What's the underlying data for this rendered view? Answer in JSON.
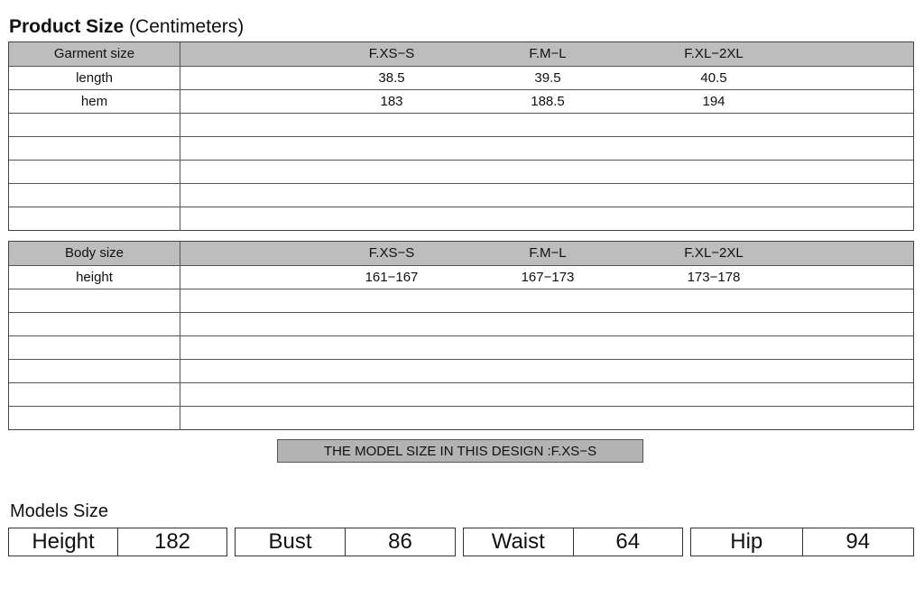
{
  "title": {
    "bold": "Product Size",
    "rest": "(Centimeters)"
  },
  "garment_table": {
    "header": [
      "Garment size",
      "F.XS−S",
      "F.M−L",
      "F.XL−2XL"
    ],
    "rows": [
      [
        "length",
        "38.5",
        "39.5",
        "40.5"
      ],
      [
        "hem",
        "183",
        "188.5",
        "194"
      ],
      [
        "",
        "",
        "",
        ""
      ],
      [
        "",
        "",
        "",
        ""
      ],
      [
        "",
        "",
        "",
        ""
      ],
      [
        "",
        "",
        "",
        ""
      ],
      [
        "",
        "",
        "",
        ""
      ]
    ]
  },
  "body_table": {
    "header": [
      "Body size",
      "F.XS−S",
      "F.M−L",
      "F.XL−2XL"
    ],
    "rows": [
      [
        "height",
        "161−167",
        "167−173",
        "173−178"
      ],
      [
        "",
        "",
        "",
        ""
      ],
      [
        "",
        "",
        "",
        ""
      ],
      [
        "",
        "",
        "",
        ""
      ],
      [
        "",
        "",
        "",
        ""
      ],
      [
        "",
        "",
        "",
        ""
      ],
      [
        "",
        "",
        "",
        ""
      ]
    ]
  },
  "banner": "THE MODEL SIZE IN THIS DESIGN :F.XS−S",
  "models": {
    "title": "Models Size",
    "items": [
      {
        "label": "Height",
        "value": "182"
      },
      {
        "label": "Bust",
        "value": "86"
      },
      {
        "label": "Waist",
        "value": "64"
      },
      {
        "label": "Hip",
        "value": "94"
      }
    ]
  },
  "colors": {
    "header_bg": "#bdbdbd",
    "banner_bg": "#b3b3b3"
  }
}
